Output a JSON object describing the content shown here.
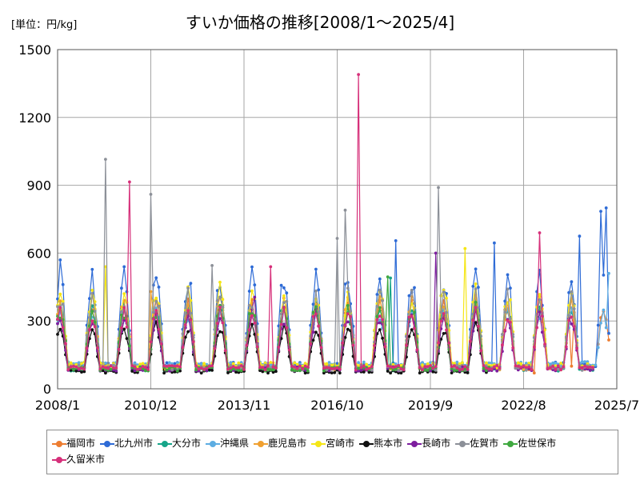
{
  "unit_label": "[単位：円/kg]",
  "chart_data": {
    "type": "line",
    "title": "すいか価格の推移[2008/1～2025/4]",
    "xlabel": "",
    "ylabel": "",
    "ylim": [
      0,
      1500
    ],
    "y_ticks": [
      0,
      300,
      600,
      900,
      1200,
      1500
    ],
    "x_range": [
      "2008/1",
      "2025/7"
    ],
    "x_ticks": [
      "2008/1",
      "2010/12",
      "2013/11",
      "2016/10",
      "2019/9",
      "2022/8",
      "2025/7"
    ],
    "grid": true,
    "legend_position": "bottom",
    "series": [
      {
        "name": "福岡市",
        "color": "#ED7D31",
        "base": 170,
        "peak": 370,
        "start": "2008/1",
        "end": "2025/4",
        "noise": 0.2,
        "spikes": [
          [
            "2022/12",
            70
          ],
          [
            "2024/2",
            100
          ]
        ]
      },
      {
        "name": "北九州市",
        "color": "#2E6BD6",
        "base": 190,
        "peak": 480,
        "start": "2008/1",
        "end": "2025/4",
        "noise": 0.25,
        "spikes": [
          [
            "2008/2",
            570
          ],
          [
            "2018/8",
            655
          ],
          [
            "2021/9",
            645
          ],
          [
            "2024/5",
            675
          ],
          [
            "2025/1",
            785
          ],
          [
            "2025/3",
            800
          ]
        ]
      },
      {
        "name": "大分市",
        "color": "#17A589",
        "base": 160,
        "peak": 360,
        "start": "2008/1",
        "end": "2024/10",
        "noise": 0.22,
        "spikes": [
          [
            "2018/6",
            490
          ]
        ]
      },
      {
        "name": "沖縄県",
        "color": "#5DADE2",
        "base": 200,
        "peak": 330,
        "start": "2008/1",
        "end": "2025/4",
        "noise": 0.18,
        "spikes": [
          [
            "2025/4",
            510
          ]
        ]
      },
      {
        "name": "鹿児島市",
        "color": "#F0A030",
        "base": 170,
        "peak": 380,
        "start": "2008/1",
        "end": "2024/10",
        "noise": 0.22,
        "spikes": [
          [
            "2010/12",
            430
          ]
        ]
      },
      {
        "name": "宮崎市",
        "color": "#F5E616",
        "base": 190,
        "peak": 420,
        "start": "2008/1",
        "end": "2024/10",
        "noise": 0.25,
        "spikes": [
          [
            "2009/7",
            540
          ],
          [
            "2020/10",
            620
          ]
        ]
      },
      {
        "name": "熊本市",
        "color": "#111111",
        "base": 140,
        "peak": 270,
        "start": "2008/1",
        "end": "2021/7",
        "noise": 0.2,
        "spikes": []
      },
      {
        "name": "長崎市",
        "color": "#7D1E9E",
        "base": 160,
        "peak": 320,
        "start": "2008/1",
        "end": "2024/10",
        "noise": 0.22,
        "spikes": [
          [
            "2019/11",
            600
          ],
          [
            "2014/3",
            405
          ]
        ]
      },
      {
        "name": "佐賀市",
        "color": "#8C9098",
        "base": 170,
        "peak": 400,
        "start": "2008/1",
        "end": "2024/10",
        "noise": 0.25,
        "spikes": [
          [
            "2009/7",
            1015
          ],
          [
            "2010/12",
            860
          ],
          [
            "2016/10",
            665
          ],
          [
            "2017/1",
            790
          ],
          [
            "2019/12",
            890
          ],
          [
            "2012/11",
            545
          ]
        ]
      },
      {
        "name": "佐世保市",
        "color": "#3FA83F",
        "base": 160,
        "peak": 350,
        "start": "2008/1",
        "end": "2021/7",
        "noise": 0.22,
        "spikes": [
          [
            "2018/5",
            495
          ]
        ]
      },
      {
        "name": "久留米市",
        "color": "#D6307A",
        "base": 170,
        "peak": 330,
        "start": "2008/1",
        "end": "2024/10",
        "noise": 0.22,
        "spikes": [
          [
            "2010/4",
            915
          ],
          [
            "2017/6",
            1390
          ],
          [
            "2014/9",
            540
          ],
          [
            "2023/2",
            690
          ]
        ]
      }
    ]
  }
}
